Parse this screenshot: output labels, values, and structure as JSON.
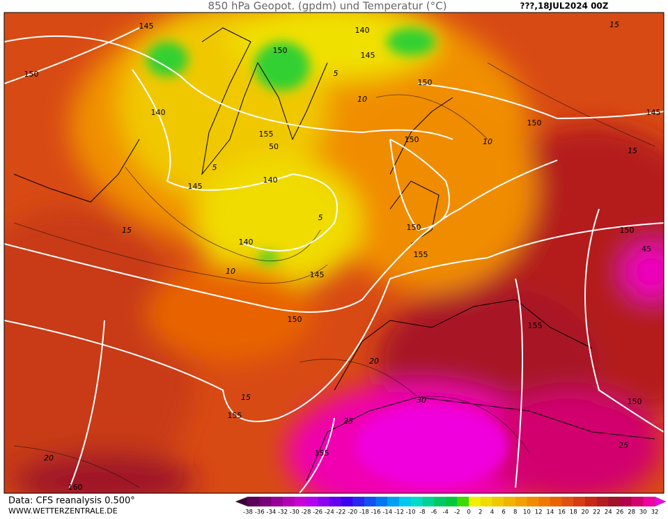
{
  "header": {
    "title": "850 hPa Geopot. (gpdm) und Temperatur (°C)",
    "date": "???,18JUL2024 00Z"
  },
  "footer": {
    "source": "Data: CFS reanalysis 0.500°",
    "site": "WWW.WETTERZENTRALE.DE"
  },
  "contour_labels": [
    "145",
    "150",
    "140",
    "145",
    "155",
    "50",
    "150",
    "140",
    "145",
    "150",
    "150",
    "145",
    "150",
    "140",
    "150",
    "140",
    "155",
    "145",
    "150",
    "155",
    "150",
    "150",
    "155",
    "155",
    "160",
    "45"
  ],
  "temperature_labels": [
    "5",
    "10",
    "15",
    "10",
    "15",
    "20",
    "20",
    "25",
    "30",
    "25",
    "10",
    "15",
    "15",
    "5",
    "5"
  ],
  "legend": {
    "labels": [
      -38,
      -36,
      -34,
      -32,
      -30,
      -28,
      -26,
      -24,
      -22,
      -20,
      -18,
      -16,
      -14,
      -12,
      -10,
      -8,
      -6,
      -4,
      -2,
      0,
      2,
      4,
      6,
      8,
      10,
      12,
      14,
      16,
      18,
      20,
      22,
      24,
      26,
      28,
      30,
      32
    ],
    "colors": [
      "#3c0038",
      "#5a0058",
      "#780078",
      "#960096",
      "#b400b4",
      "#c800d2",
      "#b400f0",
      "#8c00f0",
      "#6400f0",
      "#3c00f0",
      "#2828f0",
      "#1450f0",
      "#0078f0",
      "#00a0f0",
      "#00c8f0",
      "#00dcc8",
      "#00d296",
      "#00c864",
      "#00c83c",
      "#3cdc00",
      "#f0f000",
      "#f0dc00",
      "#f0c800",
      "#f0b400",
      "#f0a000",
      "#f08c00",
      "#f07800",
      "#e86400",
      "#e05014",
      "#d83c14",
      "#c82814",
      "#b41e1e",
      "#a01428",
      "#b40046",
      "#d2006e",
      "#f000a0",
      "#f000dc"
    ]
  }
}
